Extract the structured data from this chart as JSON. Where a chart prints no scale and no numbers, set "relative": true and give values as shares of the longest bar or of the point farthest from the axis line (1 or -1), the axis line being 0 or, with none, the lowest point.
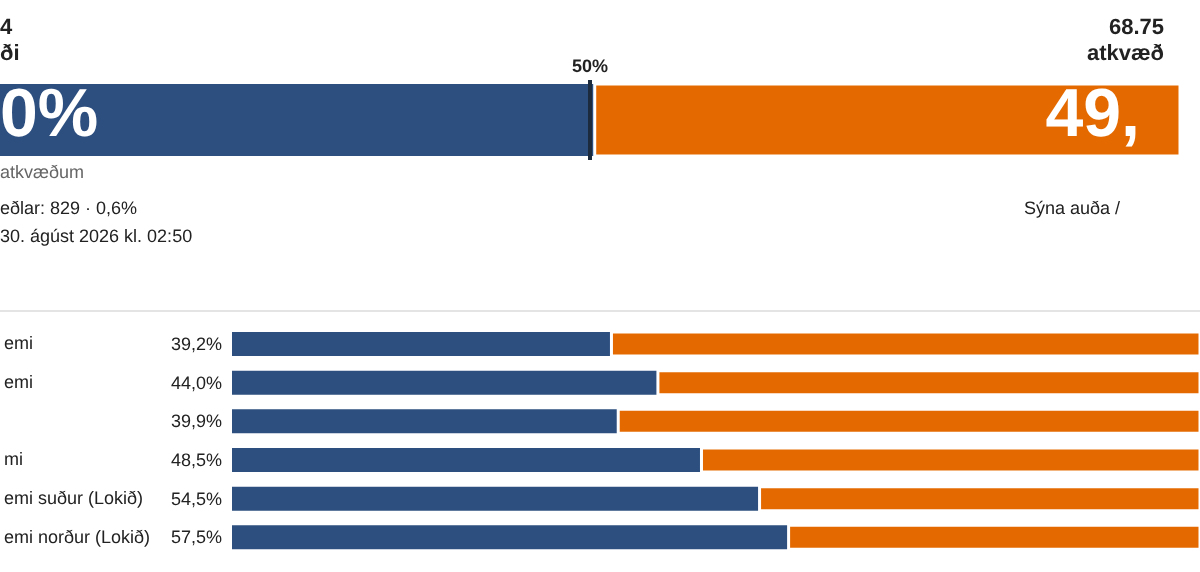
{
  "chart_data": [
    {
      "type": "bar",
      "orientation": "horizontal",
      "stacked": true,
      "categories": [
        null
      ],
      "relative": true,
      "tick_labels": false,
      "series": [
        {
          "color": "#2d4f7f",
          "values": [
            0.504
          ]
        },
        {
          "color": "#e46a00",
          "values": [
            0.496
          ]
        }
      ],
      "ref_lines": [
        {
          "axis": "x",
          "value": 0.5,
          "label": "50%",
          "color": "#1c2b3d"
        }
      ],
      "annotations": [
        "4",
        "ði",
        "68.75",
        "atkvæð",
        "atkvæðum",
        "eðlar:  829 · 0,6%",
        "30. ágúst 2026 kl. 02:50",
        "Sýna auða /",
        "0%",
        "49,"
      ]
    },
    {
      "type": "bar",
      "orientation": "horizontal",
      "stacked": true,
      "categories": [
        "emi",
        "emi",
        null,
        "mi",
        "emi suður (Lokið)",
        "emi norður (Lokið)"
      ],
      "xlim": [
        0,
        100
      ],
      "tick_labels": "y",
      "series": [
        {
          "color": "#2d4f7f",
          "values": [
            39.2,
            44.0,
            39.9,
            48.5,
            54.5,
            57.5
          ],
          "value_labels": [
            "39,2%",
            "44,0%",
            "39,9%",
            "48,5%",
            "54,5%",
            "57,5%"
          ]
        },
        {
          "color": "#e46a00",
          "values": [
            60.8,
            56.0,
            60.1,
            51.5,
            45.5,
            42.5
          ]
        }
      ]
    }
  ]
}
